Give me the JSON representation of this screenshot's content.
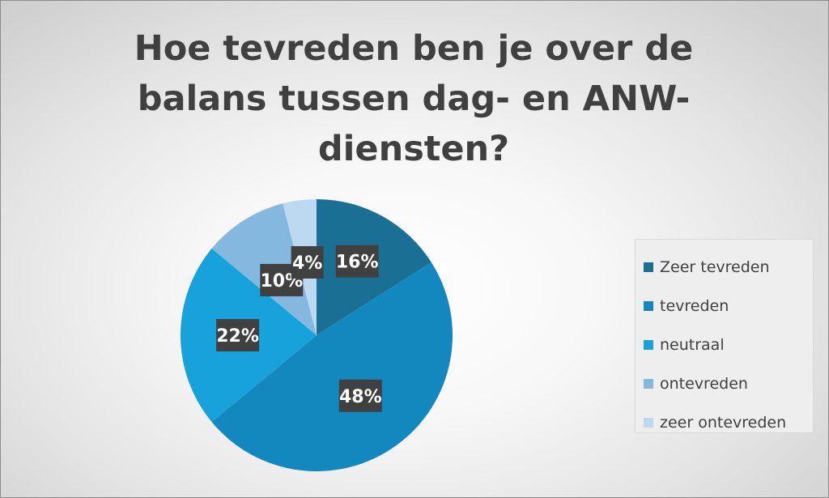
{
  "title": "Hoe tevreden ben je over de balans tussen dag- en ANW-diensten?",
  "colors": {
    "label_bg": "#404040",
    "label_text": "#ffffff",
    "title_text": "#404040"
  },
  "chart_data": {
    "type": "pie",
    "title": "Hoe tevreden ben je over de balans tussen dag- en ANW-diensten?",
    "categories": [
      "Zeer tevreden",
      "tevreden",
      "neutraal",
      "ontevreden",
      "zeer ontevreden"
    ],
    "values": [
      16,
      48,
      22,
      10,
      4
    ],
    "data_labels": [
      "16%",
      "48%",
      "22%",
      "10%",
      "4%"
    ],
    "colors": [
      "#1a6f95",
      "#1288bf",
      "#17a2db",
      "#85b8df",
      "#bdd8f1"
    ],
    "legend_position": "right",
    "start_angle": "12 o'clock",
    "direction": "clockwise"
  }
}
